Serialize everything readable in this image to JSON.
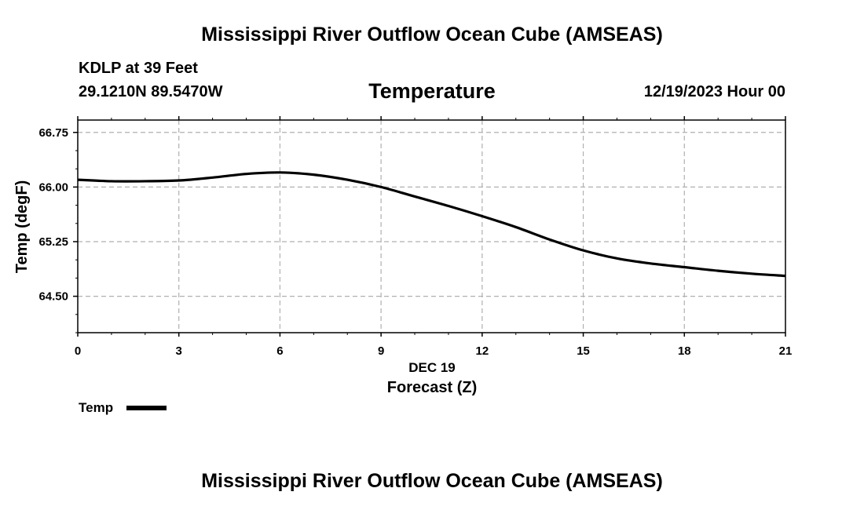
{
  "header": {
    "title": "Mississippi River Outflow Ocean Cube (AMSEAS)",
    "station": "KDLP at 39 Feet",
    "coordinates": "29.1210N  89.5470W",
    "subtitle": "Temperature",
    "datetime": "12/19/2023 Hour 00"
  },
  "footer": {
    "title": "Mississippi River Outflow Ocean Cube (AMSEAS)"
  },
  "legend": {
    "label": "Temp",
    "color": "#000000"
  },
  "chart_data": {
    "type": "line",
    "title": "Temperature",
    "xlabel": "Forecast (Z)",
    "xlabel_date": "DEC 19",
    "ylabel": "Temp (degF)",
    "xlim": [
      0,
      21
    ],
    "ylim": [
      64.0,
      66.92
    ],
    "xticks": [
      0,
      3,
      6,
      9,
      12,
      15,
      18,
      21
    ],
    "xtick_labels": [
      "0",
      "3",
      "6",
      "9",
      "12",
      "15",
      "18",
      "21"
    ],
    "yticks": [
      64.5,
      65.25,
      66.0,
      66.75
    ],
    "ytick_labels": [
      "64.50",
      "65.25",
      "66.00",
      "66.75"
    ],
    "grid": true,
    "series": [
      {
        "name": "Temp",
        "color": "#000000",
        "x": [
          0,
          1,
          2,
          3,
          4,
          5,
          6,
          7,
          8,
          9,
          10,
          11,
          12,
          13,
          14,
          15,
          16,
          17,
          18,
          19,
          20,
          21
        ],
        "values": [
          66.1,
          66.08,
          66.08,
          66.09,
          66.13,
          66.18,
          66.2,
          66.17,
          66.1,
          66.0,
          65.87,
          65.74,
          65.6,
          65.45,
          65.28,
          65.13,
          65.02,
          64.95,
          64.9,
          64.85,
          64.81,
          64.78
        ]
      }
    ]
  }
}
